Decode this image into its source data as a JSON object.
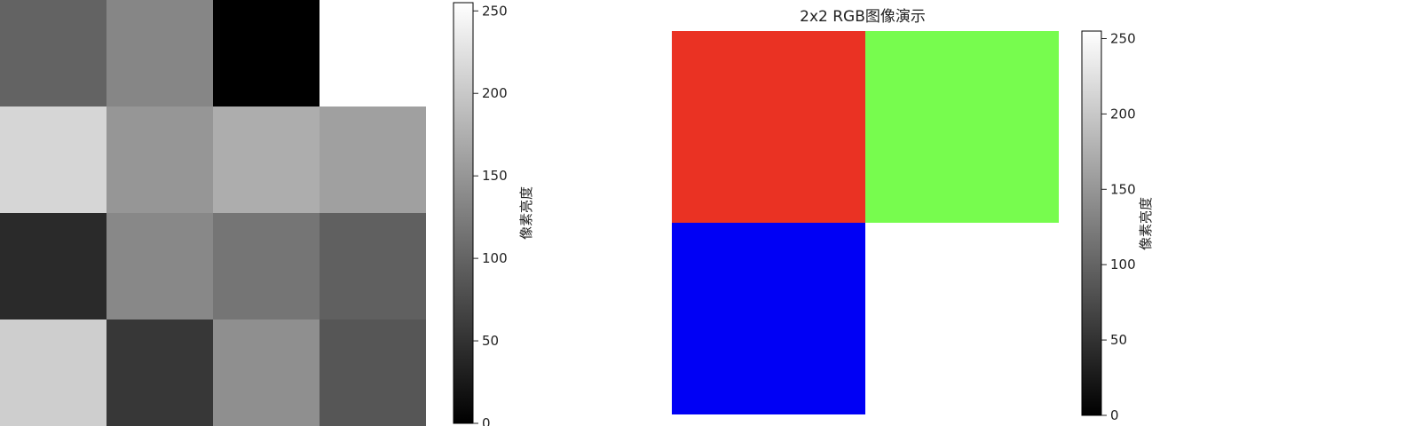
{
  "chart_data": [
    {
      "type": "heatmap",
      "title": "",
      "rows": 4,
      "cols": 4,
      "values": [
        [
          99,
          134,
          0,
          null
        ],
        [
          214,
          150,
          173,
          160
        ],
        [
          42,
          136,
          117,
          96
        ],
        [
          206,
          55,
          143,
          86
        ]
      ],
      "colormap": "gray",
      "clim": [
        0,
        255
      ],
      "colorbar": {
        "label": "像素亮度",
        "ticks": [
          0,
          50,
          100,
          150,
          200,
          250
        ],
        "tick_labels": [
          "0",
          "50",
          "100",
          "150",
          "200",
          "250"
        ]
      }
    },
    {
      "type": "heatmap",
      "title": "2x2 RGB图像演示",
      "rows": 2,
      "cols": 2,
      "pixels": [
        [
          "#ea3223",
          "#77fc4e"
        ],
        [
          "#0000f5",
          null
        ]
      ],
      "colormap": "gray",
      "clim": [
        0,
        255
      ],
      "colorbar": {
        "label": "像素亮度",
        "ticks": [
          0,
          50,
          100,
          150,
          200,
          250
        ],
        "tick_labels": [
          "0",
          "50",
          "100",
          "150",
          "200",
          "250"
        ]
      }
    }
  ]
}
